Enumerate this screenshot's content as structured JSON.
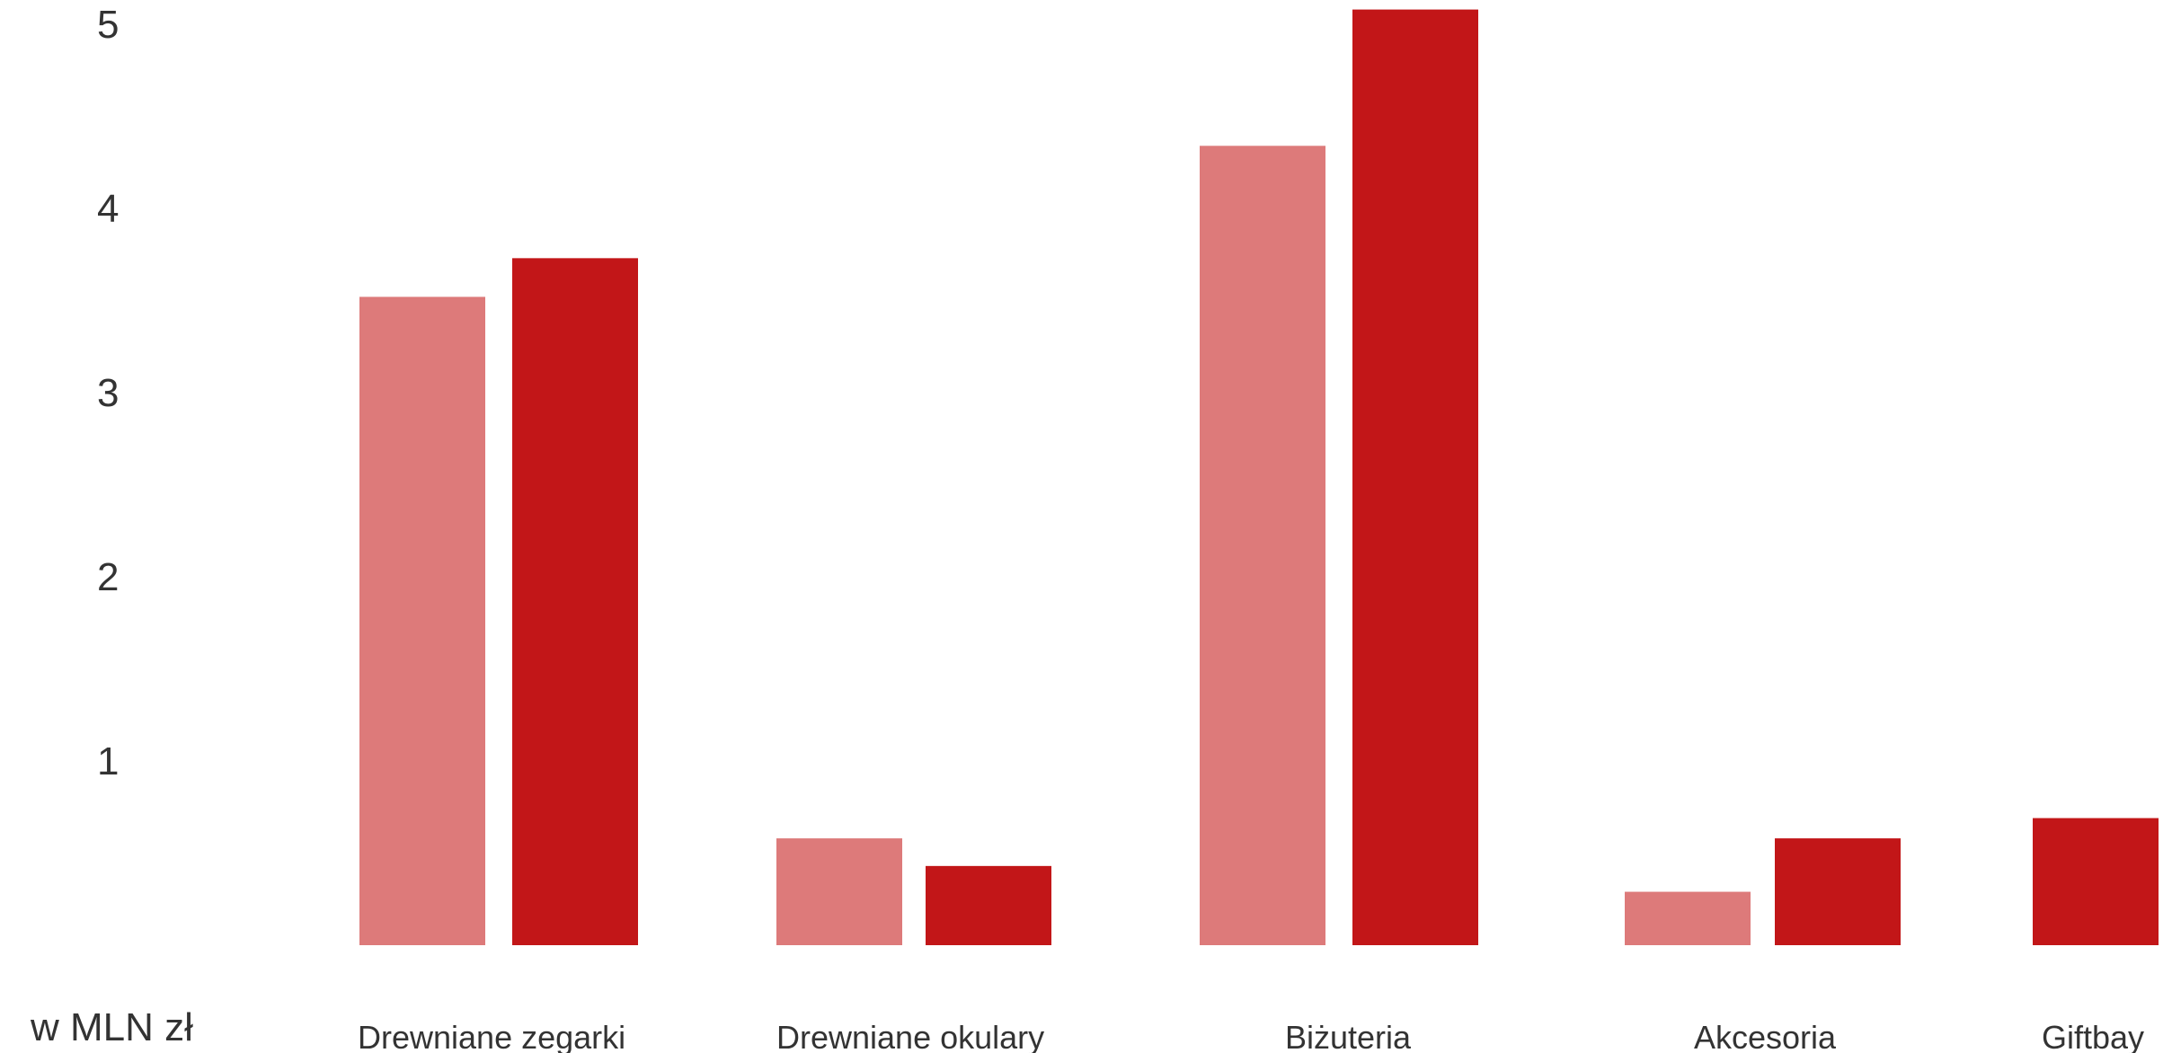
{
  "chart_data": {
    "type": "bar",
    "title": "",
    "xlabel": "",
    "ylabel": "",
    "unit_label": "w MLN zł",
    "ylim": [
      0,
      5
    ],
    "yticks": [
      1,
      2,
      3,
      4,
      5
    ],
    "grid": false,
    "legend": "none",
    "categories": [
      "Drewniane zegarki",
      "Drewniane okulary",
      "Biżuteria",
      "Akcesoria",
      "Giftbay"
    ],
    "series": [
      {
        "color": "#dd7a7a",
        "values": [
          3.52,
          0.58,
          4.34,
          0.29,
          null
        ]
      },
      {
        "color": "#c21618",
        "values": [
          3.73,
          0.43,
          5.08,
          0.58,
          0.69
        ]
      }
    ]
  }
}
